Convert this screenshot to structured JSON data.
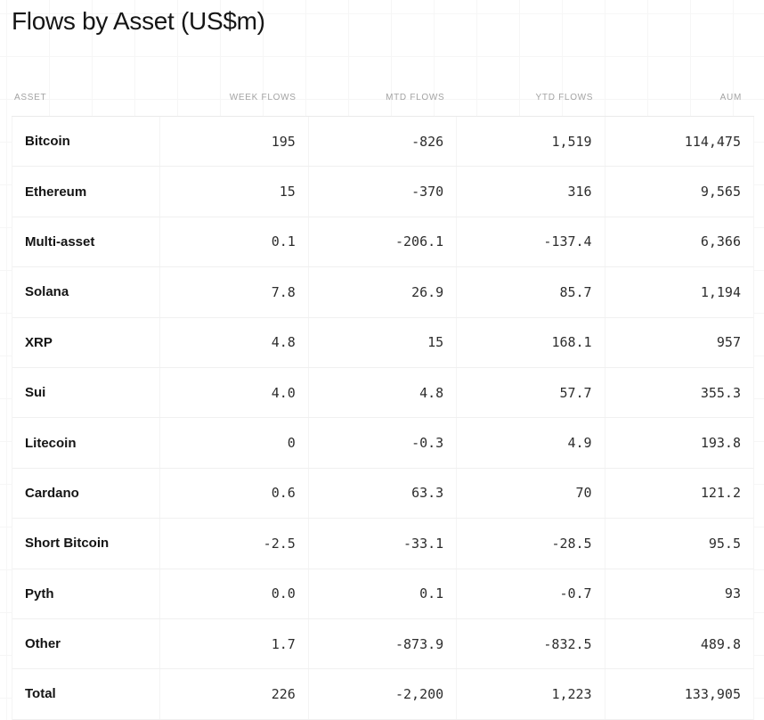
{
  "title": "Flows by Asset (US$m)",
  "table": {
    "columns": [
      "ASSET",
      "WEEK FLOWS",
      "MTD FLOWS",
      "YTD FLOWS",
      "AUM"
    ],
    "rows": [
      {
        "asset": "Bitcoin",
        "week": "195",
        "mtd": "-826",
        "ytd": "1,519",
        "aum": "114,475"
      },
      {
        "asset": "Ethereum",
        "week": "15",
        "mtd": "-370",
        "ytd": "316",
        "aum": "9,565"
      },
      {
        "asset": "Multi-asset",
        "week": "0.1",
        "mtd": "-206.1",
        "ytd": "-137.4",
        "aum": "6,366"
      },
      {
        "asset": "Solana",
        "week": "7.8",
        "mtd": "26.9",
        "ytd": "85.7",
        "aum": "1,194"
      },
      {
        "asset": "XRP",
        "week": "4.8",
        "mtd": "15",
        "ytd": "168.1",
        "aum": "957"
      },
      {
        "asset": "Sui",
        "week": "4.0",
        "mtd": "4.8",
        "ytd": "57.7",
        "aum": "355.3"
      },
      {
        "asset": "Litecoin",
        "week": "0",
        "mtd": "-0.3",
        "ytd": "4.9",
        "aum": "193.8"
      },
      {
        "asset": "Cardano",
        "week": "0.6",
        "mtd": "63.3",
        "ytd": "70",
        "aum": "121.2"
      },
      {
        "asset": "Short Bitcoin",
        "week": "-2.5",
        "mtd": "-33.1",
        "ytd": "-28.5",
        "aum": "95.5"
      },
      {
        "asset": "Pyth",
        "week": "0.0",
        "mtd": "0.1",
        "ytd": "-0.7",
        "aum": "93"
      },
      {
        "asset": "Other",
        "week": "1.7",
        "mtd": "-873.9",
        "ytd": "-832.5",
        "aum": "489.8"
      },
      {
        "asset": "Total",
        "week": "226",
        "mtd": "-2,200",
        "ytd": "1,223",
        "aum": "133,905"
      }
    ]
  },
  "chart_data": {
    "type": "table",
    "title": "Flows by Asset (US$m)",
    "columns": [
      "ASSET",
      "WEEK FLOWS",
      "MTD FLOWS",
      "YTD FLOWS",
      "AUM"
    ],
    "rows": [
      [
        "Bitcoin",
        195,
        -826,
        1519,
        114475
      ],
      [
        "Ethereum",
        15,
        -370,
        316,
        9565
      ],
      [
        "Multi-asset",
        0.1,
        -206.1,
        -137.4,
        6366
      ],
      [
        "Solana",
        7.8,
        26.9,
        85.7,
        1194
      ],
      [
        "XRP",
        4.8,
        15,
        168.1,
        957
      ],
      [
        "Sui",
        4.0,
        4.8,
        57.7,
        355.3
      ],
      [
        "Litecoin",
        0,
        -0.3,
        4.9,
        193.8
      ],
      [
        "Cardano",
        0.6,
        63.3,
        70,
        121.2
      ],
      [
        "Short Bitcoin",
        -2.5,
        -33.1,
        -28.5,
        95.5
      ],
      [
        "Pyth",
        0.0,
        0.1,
        -0.7,
        93
      ],
      [
        "Other",
        1.7,
        -873.9,
        -832.5,
        489.8
      ],
      [
        "Total",
        226,
        -2200,
        1223,
        133905
      ]
    ]
  },
  "colors": {
    "background": "#ffffff",
    "grid_line": "#f6f6f6",
    "title_text": "#161616",
    "header_text": "#a3a3a3",
    "asset_text": "#141414",
    "number_text": "#2d2d2d",
    "row_separator": "#f0f0f0",
    "column_separator": "#f4f4f4"
  }
}
